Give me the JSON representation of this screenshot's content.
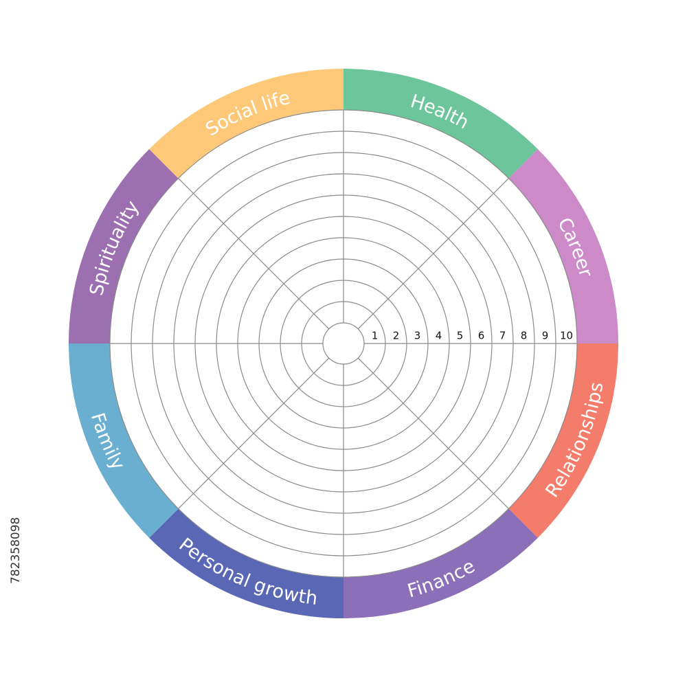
{
  "segments": [
    {
      "label": "Health",
      "color": "#6cc59b"
    },
    {
      "label": "Career",
      "color": "#cc8ac9"
    },
    {
      "label": "Relationships",
      "color": "#f47c6b"
    },
    {
      "label": "Finance",
      "color": "#8b6fb8"
    },
    {
      "label": "Personal growth",
      "color": "#5a67b5"
    },
    {
      "label": "Family",
      "color": "#6aafd0"
    },
    {
      "label": "Spirituality",
      "color": "#9b6fb0"
    },
    {
      "label": "Social life",
      "color": "#fdc877"
    }
  ],
  "scale": [
    1,
    2,
    3,
    4,
    5,
    6,
    7,
    8,
    9,
    10
  ],
  "stock_id": "782358098"
}
